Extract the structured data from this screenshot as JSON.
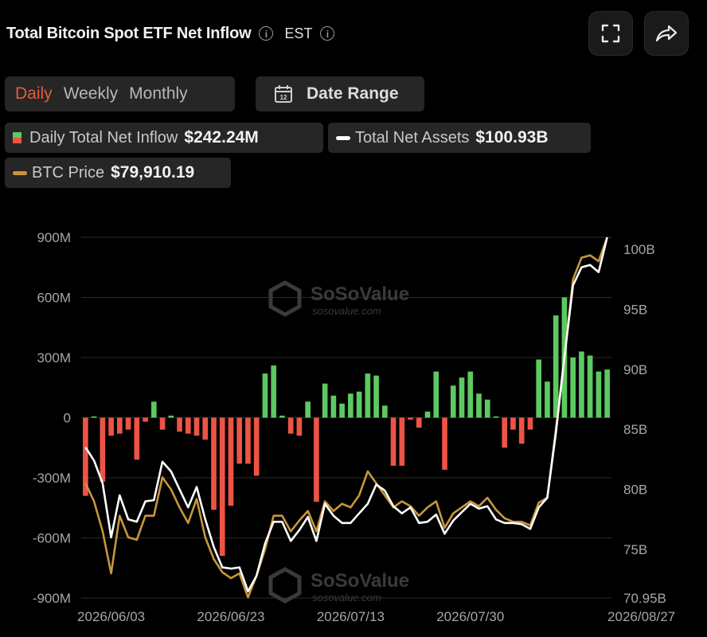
{
  "header": {
    "title": "Total Bitcoin Spot ETF Net Inflow",
    "timezone": "EST"
  },
  "icons": {
    "info": "info-icon",
    "fullscreen": "fullscreen-icon",
    "share": "share-icon",
    "calendar": "calendar-icon"
  },
  "tabs": [
    {
      "label": "Daily",
      "active": true
    },
    {
      "label": "Weekly",
      "active": false
    },
    {
      "label": "Monthly",
      "active": false
    }
  ],
  "date_range": {
    "label": "Date Range",
    "icon_text": "12"
  },
  "legend": {
    "inflow": {
      "name": "Daily Total Net Inflow",
      "value": "$242.24M"
    },
    "assets": {
      "name": "Total Net Assets",
      "value": "$100.93B"
    },
    "price": {
      "name": "BTC Price",
      "value": "$79,910.19"
    }
  },
  "watermark": {
    "brand": "SoSoValue",
    "url": "sosovalue.com"
  },
  "colors": {
    "positive": "#5cc962",
    "negative": "#ec5445",
    "assets_line": "#ffffff",
    "price_line": "#c8963a",
    "accent": "#e85a3c"
  },
  "chart_data": {
    "type": "bar",
    "title": "Total Bitcoin Spot ETF Net Inflow",
    "x_tick_labels": [
      "2026/06/03",
      "2026/06/23",
      "2026/07/13",
      "2026/07/30",
      "2026/08/27"
    ],
    "x_tick_indices": [
      3,
      17,
      31,
      45,
      65
    ],
    "y_left": {
      "ticks": [
        -900,
        -600,
        -300,
        0,
        300,
        600,
        900
      ],
      "tick_labels": [
        "-900M",
        "-600M",
        "-300M",
        "0",
        "300M",
        "600M",
        "900M"
      ],
      "range": [
        -900,
        900
      ],
      "unit": "M USD"
    },
    "y_right": {
      "ticks": [
        70.95,
        75,
        80,
        85,
        90,
        95,
        100
      ],
      "tick_labels": [
        "70.95B",
        "75B",
        "80B",
        "85B",
        "90B",
        "95B",
        "100B"
      ],
      "range": [
        70.95,
        101
      ],
      "unit": "B USD"
    },
    "grid": true,
    "series": [
      {
        "name": "Daily Total Net Inflow",
        "kind": "bar",
        "axis": "left",
        "values": [
          -390,
          0,
          -320,
          -90,
          -80,
          -60,
          -210,
          -20,
          80,
          -60,
          10,
          -70,
          -80,
          -90,
          -110,
          -460,
          -690,
          -440,
          -230,
          -230,
          -290,
          220,
          260,
          10,
          -80,
          -90,
          80,
          -420,
          170,
          110,
          70,
          120,
          130,
          220,
          210,
          60,
          -240,
          -240,
          -10,
          -50,
          30,
          230,
          -260,
          160,
          200,
          230,
          120,
          90,
          0,
          -150,
          -60,
          -130,
          -60,
          290,
          180,
          510,
          600,
          300,
          330,
          310,
          230,
          240
        ]
      },
      {
        "name": "Total Net Assets",
        "kind": "line",
        "axis": "right",
        "values": [
          83.5,
          82.4,
          80.5,
          76.0,
          79.5,
          77.5,
          77.3,
          79.0,
          79.1,
          82.3,
          81.5,
          80.0,
          78.5,
          80.2,
          77.5,
          75.2,
          73.5,
          73.4,
          73.5,
          71.5,
          72.8,
          75.5,
          77.3,
          77.3,
          75.7,
          76.6,
          77.7,
          75.7,
          78.8,
          77.8,
          77.2,
          77.2,
          78.0,
          78.8,
          80.4,
          79.9,
          78.6,
          78.0,
          78.5,
          77.2,
          77.3,
          77.9,
          76.3,
          77.4,
          78.1,
          78.8,
          78.4,
          78.6,
          77.5,
          77.2,
          77.2,
          77.1,
          76.7,
          78.5,
          79.3,
          84.7,
          91.0,
          97.0,
          98.5,
          98.7,
          98.1,
          101.0
        ]
      },
      {
        "name": "BTC Price",
        "kind": "line",
        "axis": "right",
        "values": [
          80.5,
          79.0,
          76.5,
          73.0,
          77.8,
          76.0,
          75.8,
          77.8,
          77.8,
          81.0,
          80.0,
          78.5,
          77.2,
          79.2,
          76.0,
          74.2,
          73.1,
          72.6,
          73.0,
          71.0,
          72.8,
          75.0,
          77.8,
          77.8,
          76.5,
          77.4,
          78.2,
          76.5,
          79.0,
          78.2,
          78.8,
          78.5,
          79.5,
          81.5,
          80.5,
          79.5,
          78.5,
          79.0,
          78.6,
          77.8,
          78.5,
          79.0,
          76.8,
          78.0,
          78.5,
          79.0,
          78.6,
          79.3,
          78.3,
          77.6,
          77.3,
          77.3,
          77.0,
          78.9,
          79.3,
          85.0,
          91.0,
          97.5,
          99.3,
          99.5,
          99.0,
          101.0
        ]
      }
    ],
    "legend_position": "top-left"
  }
}
